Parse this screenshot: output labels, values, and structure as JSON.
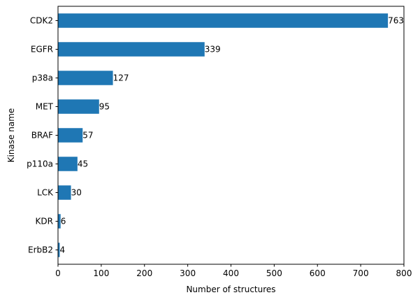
{
  "chart_data": {
    "type": "bar",
    "orientation": "horizontal",
    "categories": [
      "CDK2",
      "EGFR",
      "p38a",
      "MET",
      "BRAF",
      "p110a",
      "LCK",
      "KDR",
      "ErbB2"
    ],
    "values": [
      763,
      339,
      127,
      95,
      57,
      45,
      30,
      6,
      4
    ],
    "value_labels": [
      "763",
      "339",
      "127",
      "95",
      "57",
      "45",
      "30",
      "6",
      "4"
    ],
    "xlabel": "Number of structures",
    "ylabel": "Kinase name",
    "xlim": [
      0,
      800
    ],
    "xticks": [
      0,
      100,
      200,
      300,
      400,
      500,
      600,
      700,
      800
    ],
    "xtick_labels": [
      "0",
      "100",
      "200",
      "300",
      "400",
      "500",
      "600",
      "700",
      "800"
    ],
    "grid": false,
    "colors": {
      "bar": "#1f77b4",
      "axis": "#000000",
      "text": "#000000"
    }
  }
}
